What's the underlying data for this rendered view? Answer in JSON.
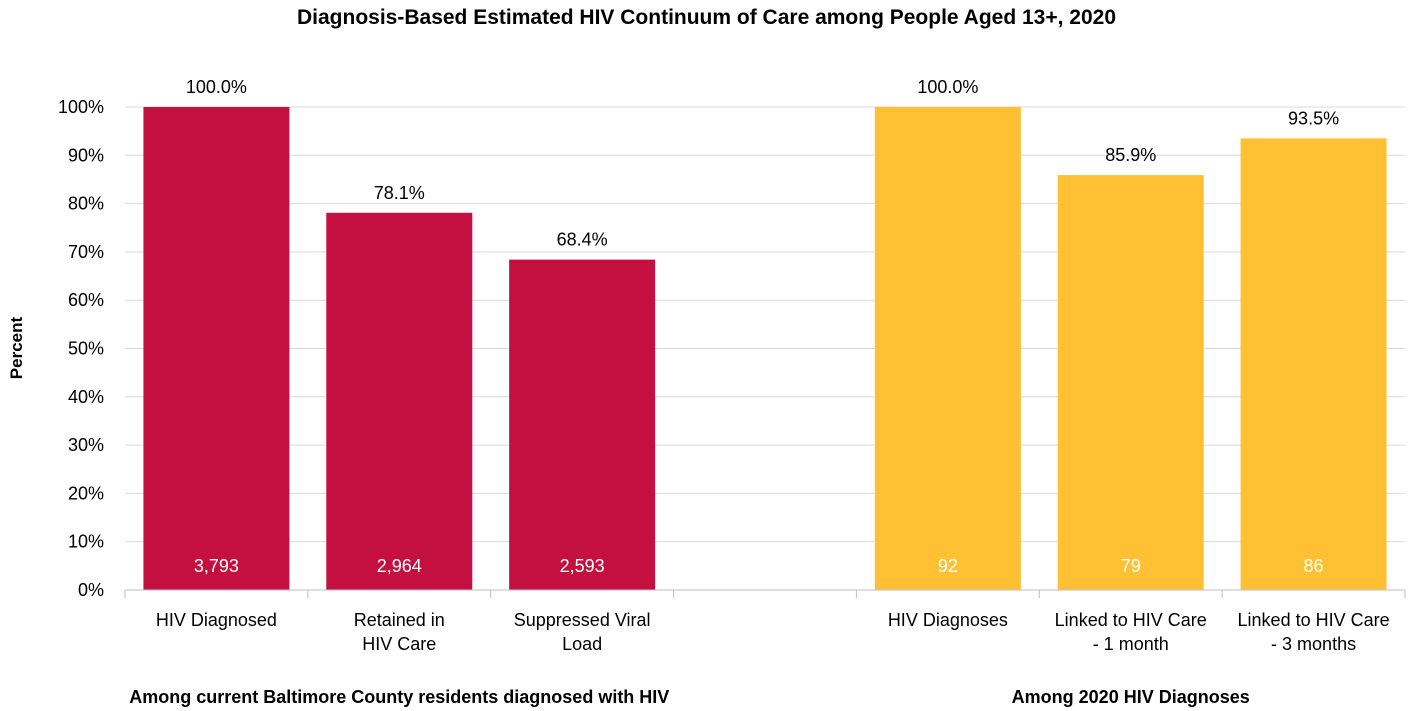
{
  "chart_data": {
    "type": "bar",
    "title": "Diagnosis-Based Estimated HIV Continuum of Care among People Aged 13+, 2020",
    "ylabel": "Percent",
    "ylim": [
      0,
      100
    ],
    "yticks": [
      "0%",
      "10%",
      "20%",
      "30%",
      "40%",
      "50%",
      "60%",
      "70%",
      "80%",
      "90%",
      "100%"
    ],
    "grid": true,
    "groups": [
      {
        "label": "Among current Baltimore County residents diagnosed with HIV",
        "color": "#C41040",
        "bars": [
          {
            "category": [
              "HIV Diagnosed"
            ],
            "value": 100.0,
            "value_label": "100.0%",
            "count": "3,793"
          },
          {
            "category": [
              "Retained in",
              "HIV Care"
            ],
            "value": 78.1,
            "value_label": "78.1%",
            "count": "2,964"
          },
          {
            "category": [
              "Suppressed Viral",
              "Load"
            ],
            "value": 68.4,
            "value_label": "68.4%",
            "count": "2,593"
          }
        ]
      },
      {
        "label": "Among 2020 HIV Diagnoses",
        "color": "#FFC133",
        "bars": [
          {
            "category": [
              "HIV Diagnoses"
            ],
            "value": 100.0,
            "value_label": "100.0%",
            "count": "92"
          },
          {
            "category": [
              "Linked to HIV Care",
              "- 1 month"
            ],
            "value": 85.9,
            "value_label": "85.9%",
            "count": "79"
          },
          {
            "category": [
              "Linked to HIV Care",
              "- 3 months"
            ],
            "value": 93.5,
            "value_label": "93.5%",
            "count": "86"
          }
        ]
      }
    ]
  }
}
